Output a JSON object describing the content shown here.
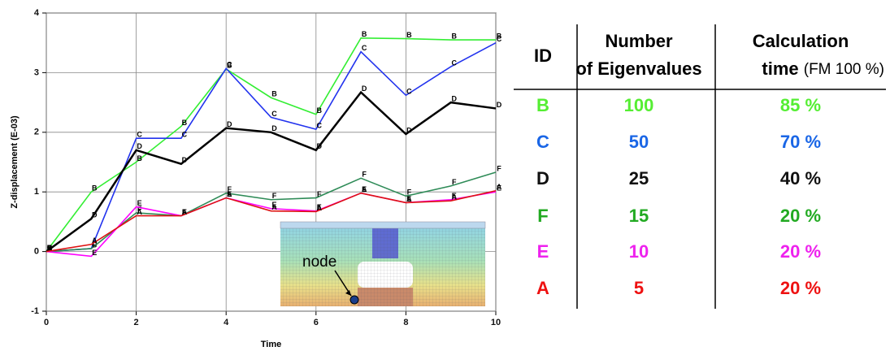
{
  "chart_data": {
    "type": "line",
    "x_label": "Time",
    "y_label": "Z-displacement (E-03)",
    "x": [
      0,
      1,
      2,
      3,
      4,
      5,
      6,
      7,
      8,
      9,
      10
    ],
    "xlim": [
      0,
      10
    ],
    "xticks": [
      0,
      2,
      4,
      6,
      8,
      10
    ],
    "ylim": [
      -1,
      4
    ],
    "yticks": [
      -1,
      0,
      1,
      2,
      3,
      4
    ],
    "grid": true,
    "annotation": "node",
    "series": [
      {
        "name": "B",
        "color": "#33ee33",
        "values": [
          0,
          1.0,
          1.5,
          2.1,
          3.06,
          2.58,
          2.3,
          3.58,
          3.57,
          3.55,
          3.55
        ]
      },
      {
        "name": "C",
        "color": "#2233ee",
        "values": [
          0,
          0.05,
          1.9,
          1.9,
          3.07,
          2.25,
          2.05,
          3.35,
          2.62,
          3.1,
          3.5
        ]
      },
      {
        "name": "D",
        "color": "#000000",
        "values": [
          0,
          0.55,
          1.7,
          1.47,
          2.07,
          2.0,
          1.7,
          2.67,
          1.97,
          2.5,
          2.4
        ]
      },
      {
        "name": "F",
        "color": "#2e8b57",
        "values": [
          0,
          0.05,
          0.65,
          0.6,
          0.98,
          0.87,
          0.9,
          1.23,
          0.93,
          1.1,
          1.33
        ]
      },
      {
        "name": "E",
        "color": "#ff00ff",
        "values": [
          0,
          -0.08,
          0.75,
          0.6,
          0.9,
          0.72,
          0.68,
          0.98,
          0.82,
          0.87,
          1.0
        ]
      },
      {
        "name": "A",
        "color": "#dd1111",
        "values": [
          0,
          0.12,
          0.6,
          0.6,
          0.9,
          0.68,
          0.67,
          0.98,
          0.82,
          0.85,
          1.02
        ]
      }
    ]
  },
  "table": {
    "columns": [
      {
        "label": "ID"
      },
      {
        "label": "Number of Eigenvalues"
      },
      {
        "label": "Calculation time",
        "note": "(FM 100 %)"
      }
    ],
    "rows": [
      {
        "color": "#55ee33",
        "cells": [
          "B",
          "100",
          "85 %"
        ]
      },
      {
        "color": "#1a66e6",
        "cells": [
          "C",
          "50",
          "70 %"
        ]
      },
      {
        "color": "#111111",
        "cells": [
          "D",
          "25",
          "40 %"
        ]
      },
      {
        "color": "#22aa22",
        "cells": [
          "F",
          "15",
          "20 %"
        ]
      },
      {
        "color": "#ee22ee",
        "cells": [
          "E",
          "10",
          "20 %"
        ]
      },
      {
        "color": "#ee1111",
        "cells": [
          "A",
          "5",
          "20 %"
        ]
      }
    ]
  }
}
